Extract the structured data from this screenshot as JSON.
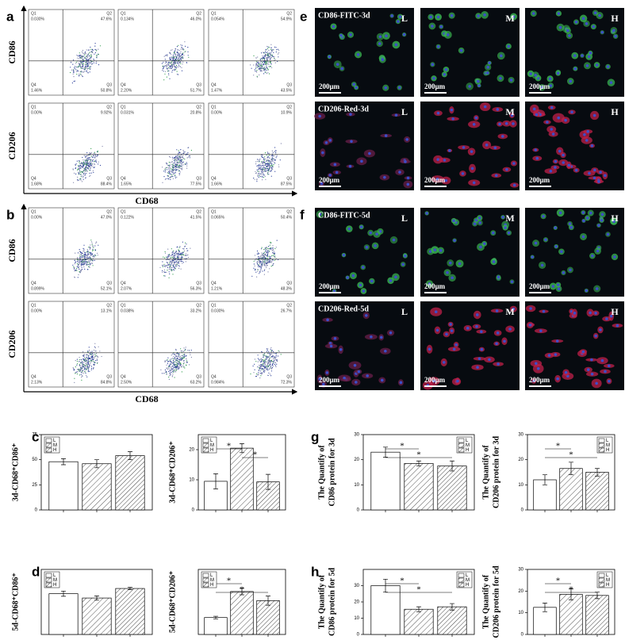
{
  "panels": [
    "a",
    "b",
    "c",
    "d",
    "e",
    "f",
    "g",
    "h"
  ],
  "flow": [
    {
      "y_labels": [
        "CD86",
        "CD206"
      ],
      "x_label": "CD68",
      "plots": [
        [
          [
            [
              "Q1",
              "0.030%"
            ],
            [
              "Q2",
              "47.6%"
            ],
            [
              "Q4",
              "1.46%"
            ],
            [
              "Q3",
              "50.8%"
            ]
          ],
          [
            [
              "Q1",
              "0.134%"
            ],
            [
              "Q2",
              "46.0%"
            ],
            [
              "Q4",
              "2.20%"
            ],
            [
              "Q3",
              "51.7%"
            ]
          ],
          [
            [
              "Q1",
              "0.054%"
            ],
            [
              "Q2",
              "54.9%"
            ],
            [
              "Q4",
              "1.47%"
            ],
            [
              "Q3",
              "43.5%"
            ]
          ]
        ],
        [
          [
            [
              "Q1",
              "0.00%"
            ],
            [
              "Q2",
              "9.92%"
            ],
            [
              "Q4",
              "1.68%"
            ],
            [
              "Q3",
              "88.4%"
            ]
          ],
          [
            [
              "Q1",
              "0.031%"
            ],
            [
              "Q2",
              "20.8%"
            ],
            [
              "Q4",
              "1.65%"
            ],
            [
              "Q3",
              "77.5%"
            ]
          ],
          [
            [
              "Q1",
              "0.00%"
            ],
            [
              "Q2",
              "10.9%"
            ],
            [
              "Q4",
              "1.66%"
            ],
            [
              "Q3",
              "87.5%"
            ]
          ]
        ]
      ]
    },
    {
      "y_labels": [
        "CD86",
        "CD206"
      ],
      "x_label": "CD68",
      "plots": [
        [
          [
            [
              "Q1",
              "0.00%"
            ],
            [
              "Q2",
              "47.0%"
            ],
            [
              "Q4",
              "0.899%"
            ],
            [
              "Q3",
              "52.1%"
            ]
          ],
          [
            [
              "Q1",
              "0.122%"
            ],
            [
              "Q2",
              "41.5%"
            ],
            [
              "Q4",
              "2.07%"
            ],
            [
              "Q3",
              "56.3%"
            ]
          ],
          [
            [
              "Q1",
              "0.065%"
            ],
            [
              "Q2",
              "50.4%"
            ],
            [
              "Q4",
              "1.21%"
            ],
            [
              "Q3",
              "48.3%"
            ]
          ]
        ],
        [
          [
            [
              "Q1",
              "0.00%"
            ],
            [
              "Q2",
              "13.1%"
            ],
            [
              "Q4",
              "2.13%"
            ],
            [
              "Q3",
              "84.8%"
            ]
          ],
          [
            [
              "Q1",
              "0.038%"
            ],
            [
              "Q2",
              "33.2%"
            ],
            [
              "Q4",
              "2.50%"
            ],
            [
              "Q3",
              "63.2%"
            ]
          ],
          [
            [
              "Q1",
              "0.030%"
            ],
            [
              "Q2",
              "26.7%"
            ],
            [
              "Q4",
              "0.984%"
            ],
            [
              "Q3",
              "72.3%"
            ]
          ]
        ]
      ]
    }
  ],
  "image_columns": [
    "L",
    "M",
    "H"
  ],
  "images": [
    {
      "rows": [
        {
          "label": "CD86-FITC-3d",
          "scale": "200µm"
        },
        {
          "label": "CD206-Red-3d",
          "scale": "200µm"
        }
      ]
    },
    {
      "rows": [
        {
          "label": "CD86-FITC-5d",
          "scale": "200µm"
        },
        {
          "label": "CD206-Red-5d",
          "scale": "200µm"
        }
      ]
    }
  ],
  "chart_data": [
    {
      "type": "bar",
      "ylabel": [
        "3d-CD68⁺CD86⁺"
      ],
      "categories": [
        "L",
        "M",
        "H"
      ],
      "values": [
        48,
        46,
        54
      ],
      "errors": [
        3,
        4,
        4
      ],
      "ylim": [
        0,
        75
      ],
      "yticks": [
        0,
        25,
        50,
        75
      ],
      "legend": "upper left",
      "significance": []
    },
    {
      "type": "bar",
      "ylabel": [
        "3d-CD68⁺CD206⁺"
      ],
      "categories": [
        "L",
        "M",
        "H"
      ],
      "values": [
        9.5,
        20.5,
        9.3
      ],
      "errors": [
        2.5,
        1.5,
        2.5
      ],
      "ylim": [
        0,
        25
      ],
      "yticks": [
        0,
        10,
        20
      ],
      "legend": "upper left",
      "significance": [
        {
          "from": "L",
          "to": "M",
          "label": "*"
        },
        {
          "from": "M",
          "to": "H",
          "label": "*"
        }
      ]
    },
    {
      "type": "bar",
      "ylabel": [
        "5d-CD68⁺CD86⁺"
      ],
      "categories": [
        "L",
        "M",
        "H"
      ],
      "values": [
        47,
        42,
        53
      ],
      "errors": [
        3,
        2.5,
        1.5
      ],
      "ylim": [
        0,
        75
      ],
      "legend": "upper left",
      "significance": []
    },
    {
      "type": "bar",
      "ylabel": [
        "5d-CD68⁺CD206⁺"
      ],
      "categories": [
        "L",
        "M",
        "H"
      ],
      "values": [
        13,
        33,
        26
      ],
      "errors": [
        1,
        2.5,
        3.5
      ],
      "ylim": [
        0,
        50
      ],
      "legend": "upper left",
      "significance": [
        {
          "from": "L",
          "to": "M",
          "label": "*"
        },
        {
          "from": "L",
          "to": "H",
          "label": "*"
        }
      ]
    },
    {
      "type": "bar",
      "ylabel": [
        "The Quantify of",
        "CD86 protein for 3d"
      ],
      "categories": [
        "L",
        "M",
        "H"
      ],
      "values": [
        23,
        18.5,
        17.5
      ],
      "errors": [
        2,
        1,
        2
      ],
      "ylim": [
        0,
        30
      ],
      "yticks": [
        0,
        10,
        20,
        30
      ],
      "legend": "upper right",
      "significance": [
        {
          "from": "L",
          "to": "M",
          "label": "*"
        },
        {
          "from": "L",
          "to": "H",
          "label": "*"
        }
      ]
    },
    {
      "type": "bar",
      "ylabel": [
        "The Quantify of",
        "CD206 protein for 3d"
      ],
      "categories": [
        "L",
        "M",
        "H"
      ],
      "values": [
        12,
        16.5,
        15
      ],
      "errors": [
        2,
        2.5,
        1.5
      ],
      "ylim": [
        0,
        30
      ],
      "yticks": [
        0,
        10,
        20,
        30
      ],
      "legend": "upper right",
      "significance": [
        {
          "from": "L",
          "to": "M",
          "label": "*"
        },
        {
          "from": "L",
          "to": "H",
          "label": "*"
        }
      ]
    },
    {
      "type": "bar",
      "ylabel": [
        "The Quantify of",
        "CD86 protein for 5d"
      ],
      "categories": [
        "L",
        "M",
        "H"
      ],
      "values": [
        30,
        15.5,
        17
      ],
      "errors": [
        4,
        1.5,
        2
      ],
      "ylim": [
        0,
        40
      ],
      "yticks": [
        0,
        10,
        20,
        30
      ],
      "legend": "upper right",
      "significance": [
        {
          "from": "L",
          "to": "M",
          "label": "*"
        },
        {
          "from": "L",
          "to": "H",
          "label": "*"
        }
      ]
    },
    {
      "type": "bar",
      "ylabel": [
        "The Quantify of",
        "CD206 protein for 5d"
      ],
      "categories": [
        "L",
        "M",
        "H"
      ],
      "values": [
        12.5,
        18.5,
        18
      ],
      "errors": [
        2,
        2.5,
        1.5
      ],
      "ylim": [
        0,
        30
      ],
      "yticks": [
        0,
        10,
        20,
        30
      ],
      "legend": "upper right",
      "significance": [
        {
          "from": "L",
          "to": "M",
          "label": "*"
        },
        {
          "from": "L",
          "to": "H",
          "label": "*"
        }
      ]
    }
  ]
}
